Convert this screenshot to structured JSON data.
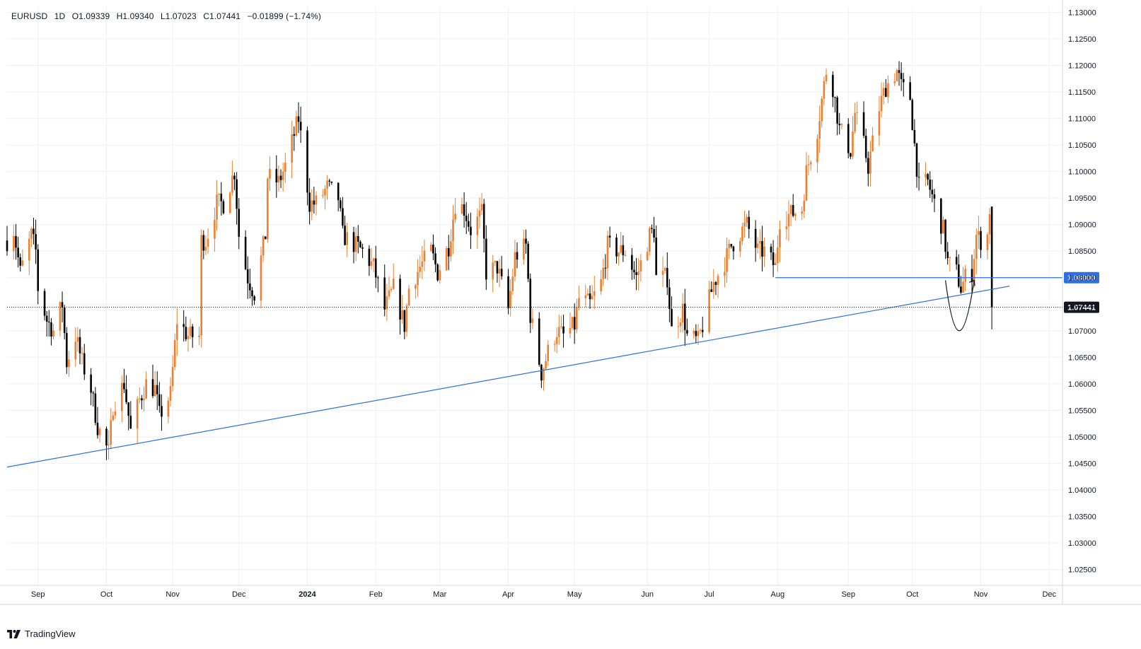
{
  "header": {
    "symbol": "EURUSD",
    "interval": "1D",
    "open": "O1.09339",
    "high": "H1.09340",
    "low": "L1.07023",
    "close": "C1.07441",
    "change": "−0.01899 (−1.74%)"
  },
  "brand": {
    "name": "TradingView",
    "icon": "tradingview-logo-icon"
  },
  "colors": {
    "up": "#f07e2e",
    "down": "#000000",
    "trendline": "#2f6fe0",
    "grid": "#eef0f3",
    "axis_text": "#131722"
  },
  "chart_data": {
    "type": "candlestick",
    "symbol": "EURUSD",
    "interval": "1D",
    "y_axis": {
      "range": [
        1.022,
        1.131
      ],
      "ticks": [
        "1.13000",
        "1.12500",
        "1.12000",
        "1.11500",
        "1.11000",
        "1.10500",
        "1.10000",
        "1.09500",
        "1.09000",
        "1.08500",
        "1.08000",
        "1.07500",
        "1.07000",
        "1.06500",
        "1.06000",
        "1.05500",
        "1.05000",
        "1.04500",
        "1.04000",
        "1.03500",
        "1.03000",
        "1.02500"
      ],
      "tick_values": [
        1.13,
        1.125,
        1.12,
        1.115,
        1.11,
        1.105,
        1.1,
        1.095,
        1.09,
        1.085,
        1.08,
        1.075,
        1.07,
        1.065,
        1.06,
        1.055,
        1.05,
        1.045,
        1.04,
        1.035,
        1.03,
        1.025
      ]
    },
    "x_axis": {
      "labels": [
        "Sep",
        "Oct",
        "Nov",
        "Dec",
        "2024",
        "Feb",
        "Mar",
        "Apr",
        "May",
        "Jun",
        "Jul",
        "Aug",
        "Sep",
        "Oct",
        "Nov",
        "Dec"
      ],
      "label_dates": [
        "2023-09-01",
        "2023-10-02",
        "2023-11-01",
        "2023-12-01",
        "2024-01-01",
        "2024-02-01",
        "2024-03-01",
        "2024-04-01",
        "2024-05-01",
        "2024-06-03",
        "2024-07-01",
        "2024-08-01",
        "2024-09-02",
        "2024-10-01",
        "2024-11-01",
        "2024-12-02"
      ],
      "bold": [
        "2024"
      ],
      "start_date": "2023-08-18",
      "end_date": "2024-12-08"
    },
    "grid": true,
    "last_price": {
      "value": 1.07441,
      "label": "1.07441"
    },
    "horizontal_level": {
      "value": 1.08,
      "label": "1.08000",
      "from_date": "2024-07-31"
    },
    "trendline": {
      "from": {
        "date": "2023-08-18",
        "value": 1.0443
      },
      "to": {
        "date": "2024-11-14",
        "value": 1.0784
      }
    },
    "annotation": {
      "type": "curved-arrow",
      "from": {
        "date": "2024-10-16",
        "value": 1.0795
      },
      "via": {
        "date": "2024-10-22",
        "value": 1.07
      },
      "to": {
        "date": "2024-10-29",
        "value": 1.0795
      }
    },
    "price_path": [
      [
        "2023-08-18",
        1.087
      ],
      [
        "2023-08-21",
        1.089
      ],
      [
        "2023-08-24",
        1.081
      ],
      [
        "2023-08-29",
        1.088
      ],
      [
        "2023-08-31",
        1.085
      ],
      [
        "2023-09-01",
        1.078
      ],
      [
        "2023-09-05",
        1.072
      ],
      [
        "2023-09-08",
        1.07
      ],
      [
        "2023-09-12",
        1.075
      ],
      [
        "2023-09-14",
        1.064
      ],
      [
        "2023-09-18",
        1.069
      ],
      [
        "2023-09-21",
        1.064
      ],
      [
        "2023-09-25",
        1.059
      ],
      [
        "2023-09-28",
        1.052
      ],
      [
        "2023-10-03",
        1.047
      ],
      [
        "2023-10-05",
        1.056
      ],
      [
        "2023-10-10",
        1.06
      ],
      [
        "2023-10-13",
        1.051
      ],
      [
        "2023-10-17",
        1.057
      ],
      [
        "2023-10-20",
        1.06
      ],
      [
        "2023-10-24",
        1.059
      ],
      [
        "2023-10-26",
        1.054
      ],
      [
        "2023-10-31",
        1.058
      ],
      [
        "2023-11-03",
        1.072
      ],
      [
        "2023-11-08",
        1.069
      ],
      [
        "2023-11-13",
        1.069
      ],
      [
        "2023-11-14",
        1.087
      ],
      [
        "2023-11-16",
        1.087
      ],
      [
        "2023-11-21",
        1.094
      ],
      [
        "2023-11-24",
        1.094
      ],
      [
        "2023-11-29",
        1.1
      ],
      [
        "2023-12-01",
        1.088
      ],
      [
        "2023-12-05",
        1.08
      ],
      [
        "2023-12-08",
        1.077
      ],
      [
        "2023-12-13",
        1.088
      ],
      [
        "2023-12-14",
        1.099
      ],
      [
        "2023-12-19",
        1.098
      ],
      [
        "2023-12-22",
        1.101
      ],
      [
        "2023-12-28",
        1.11
      ],
      [
        "2024-01-02",
        1.094
      ],
      [
        "2024-01-05",
        1.094
      ],
      [
        "2024-01-10",
        1.097
      ],
      [
        "2024-01-15",
        1.095
      ],
      [
        "2024-01-17",
        1.088
      ],
      [
        "2024-01-23",
        1.086
      ],
      [
        "2024-01-26",
        1.085
      ],
      [
        "2024-01-31",
        1.082
      ],
      [
        "2024-02-05",
        1.074
      ],
      [
        "2024-02-09",
        1.078
      ],
      [
        "2024-02-14",
        1.071
      ],
      [
        "2024-02-16",
        1.078
      ],
      [
        "2024-02-21",
        1.082
      ],
      [
        "2024-02-26",
        1.085
      ],
      [
        "2024-02-29",
        1.081
      ],
      [
        "2024-03-05",
        1.086
      ],
      [
        "2024-03-08",
        1.094
      ],
      [
        "2024-03-12",
        1.093
      ],
      [
        "2024-03-15",
        1.089
      ],
      [
        "2024-03-20",
        1.092
      ],
      [
        "2024-03-22",
        1.081
      ],
      [
        "2024-03-27",
        1.082
      ],
      [
        "2024-04-01",
        1.074
      ],
      [
        "2024-04-04",
        1.084
      ],
      [
        "2024-04-09",
        1.086
      ],
      [
        "2024-04-11",
        1.073
      ],
      [
        "2024-04-16",
        1.062
      ],
      [
        "2024-04-19",
        1.066
      ],
      [
        "2024-04-23",
        1.07
      ],
      [
        "2024-04-26",
        1.069
      ],
      [
        "2024-05-01",
        1.071
      ],
      [
        "2024-05-03",
        1.076
      ],
      [
        "2024-05-08",
        1.075
      ],
      [
        "2024-05-13",
        1.079
      ],
      [
        "2024-05-16",
        1.086
      ],
      [
        "2024-05-21",
        1.085
      ],
      [
        "2024-05-24",
        1.085
      ],
      [
        "2024-05-29",
        1.08
      ],
      [
        "2024-06-04",
        1.088
      ],
      [
        "2024-06-06",
        1.089
      ],
      [
        "2024-06-07",
        1.08
      ],
      [
        "2024-06-12",
        1.08
      ],
      [
        "2024-06-14",
        1.07
      ],
      [
        "2024-06-19",
        1.074
      ],
      [
        "2024-06-21",
        1.069
      ],
      [
        "2024-06-26",
        1.068
      ],
      [
        "2024-06-28",
        1.071
      ],
      [
        "2024-07-03",
        1.079
      ],
      [
        "2024-07-08",
        1.083
      ],
      [
        "2024-07-11",
        1.086
      ],
      [
        "2024-07-16",
        1.089
      ],
      [
        "2024-07-18",
        1.09
      ],
      [
        "2024-07-23",
        1.085
      ],
      [
        "2024-07-26",
        1.085
      ],
      [
        "2024-07-31",
        1.082
      ],
      [
        "2024-08-02",
        1.091
      ],
      [
        "2024-08-07",
        1.092
      ],
      [
        "2024-08-12",
        1.093
      ],
      [
        "2024-08-14",
        1.1
      ],
      [
        "2024-08-19",
        1.108
      ],
      [
        "2024-08-23",
        1.119
      ],
      [
        "2024-08-26",
        1.116
      ],
      [
        "2024-08-29",
        1.108
      ],
      [
        "2024-09-03",
        1.104
      ],
      [
        "2024-09-05",
        1.111
      ],
      [
        "2024-09-09",
        1.105
      ],
      [
        "2024-09-11",
        1.101
      ],
      [
        "2024-09-16",
        1.112
      ],
      [
        "2024-09-19",
        1.116
      ],
      [
        "2024-09-24",
        1.119
      ],
      [
        "2024-09-26",
        1.116
      ],
      [
        "2024-09-30",
        1.114
      ],
      [
        "2024-10-02",
        1.105
      ],
      [
        "2024-10-04",
        1.097
      ],
      [
        "2024-10-08",
        1.098
      ],
      [
        "2024-10-11",
        1.094
      ],
      [
        "2024-10-15",
        1.089
      ],
      [
        "2024-10-17",
        1.083
      ],
      [
        "2024-10-21",
        1.081
      ],
      [
        "2024-10-23",
        1.078
      ],
      [
        "2024-10-25",
        1.08
      ],
      [
        "2024-10-28",
        1.081
      ],
      [
        "2024-10-30",
        1.088
      ],
      [
        "2024-11-01",
        1.087
      ],
      [
        "2024-11-04",
        1.088
      ],
      [
        "2024-11-05",
        1.093
      ],
      [
        "2024-11-06",
        1.0744
      ]
    ]
  }
}
